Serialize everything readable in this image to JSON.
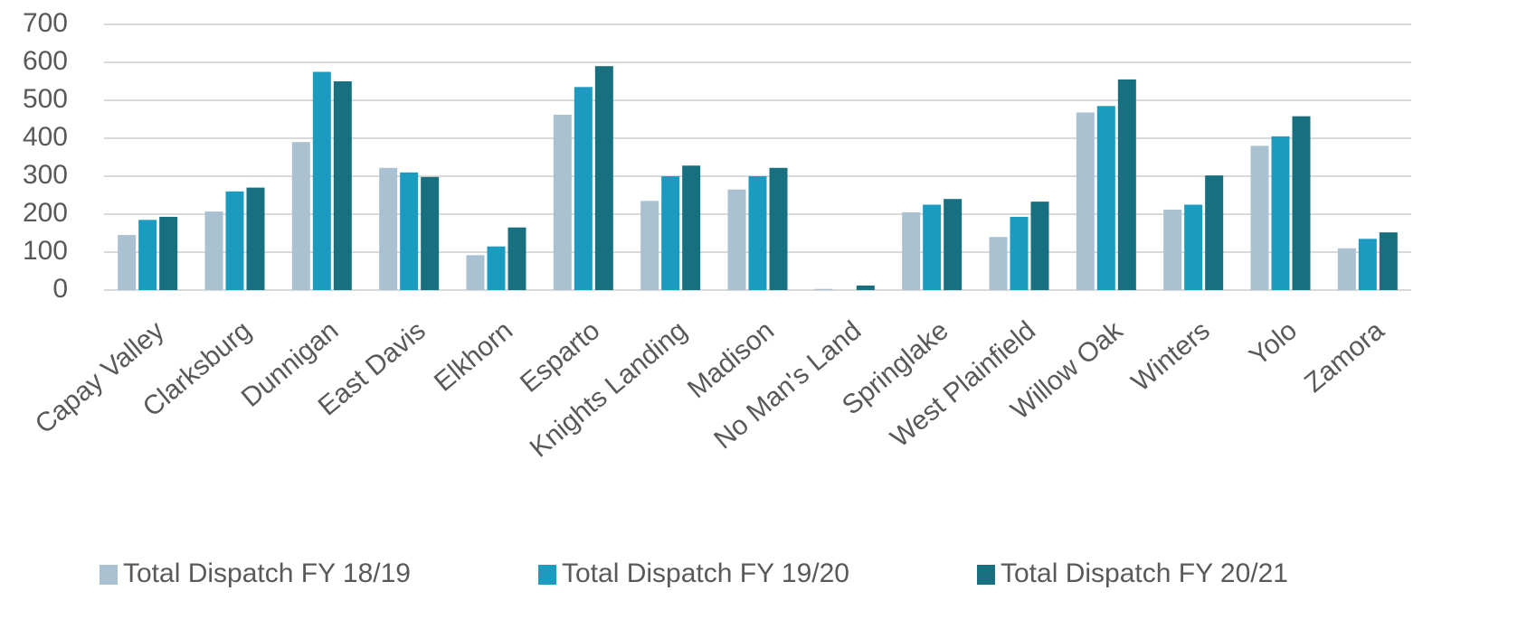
{
  "chart_data": {
    "type": "bar",
    "categories": [
      "Capay Valley",
      "Clarksburg",
      "Dunnigan",
      "East Davis",
      "Elkhorn",
      "Esparto",
      "Knights Landing",
      "Madison",
      "No Man's Land",
      "Springlake",
      "West Plainfield",
      "Willow Oak",
      "Winters",
      "Yolo",
      "Zamora"
    ],
    "series": [
      {
        "name": "Total Dispatch FY 18/19",
        "color": "#a9c1d1",
        "values": [
          145,
          207,
          390,
          322,
          92,
          462,
          235,
          265,
          3,
          205,
          140,
          468,
          212,
          380,
          110
        ]
      },
      {
        "name": "Total Dispatch FY 19/20",
        "color": "#1a9bbf",
        "values": [
          185,
          260,
          575,
          310,
          115,
          535,
          300,
          300,
          0,
          225,
          193,
          485,
          225,
          405,
          135
        ]
      },
      {
        "name": "Total Dispatch FY 20/21",
        "color": "#176f80",
        "values": [
          193,
          270,
          550,
          298,
          165,
          590,
          328,
          322,
          12,
          240,
          233,
          555,
          302,
          458,
          152
        ]
      }
    ],
    "ylim": [
      0,
      700
    ],
    "yticks": [
      0,
      100,
      200,
      300,
      400,
      500,
      600,
      700
    ],
    "grid": true,
    "legend": "bottom"
  }
}
